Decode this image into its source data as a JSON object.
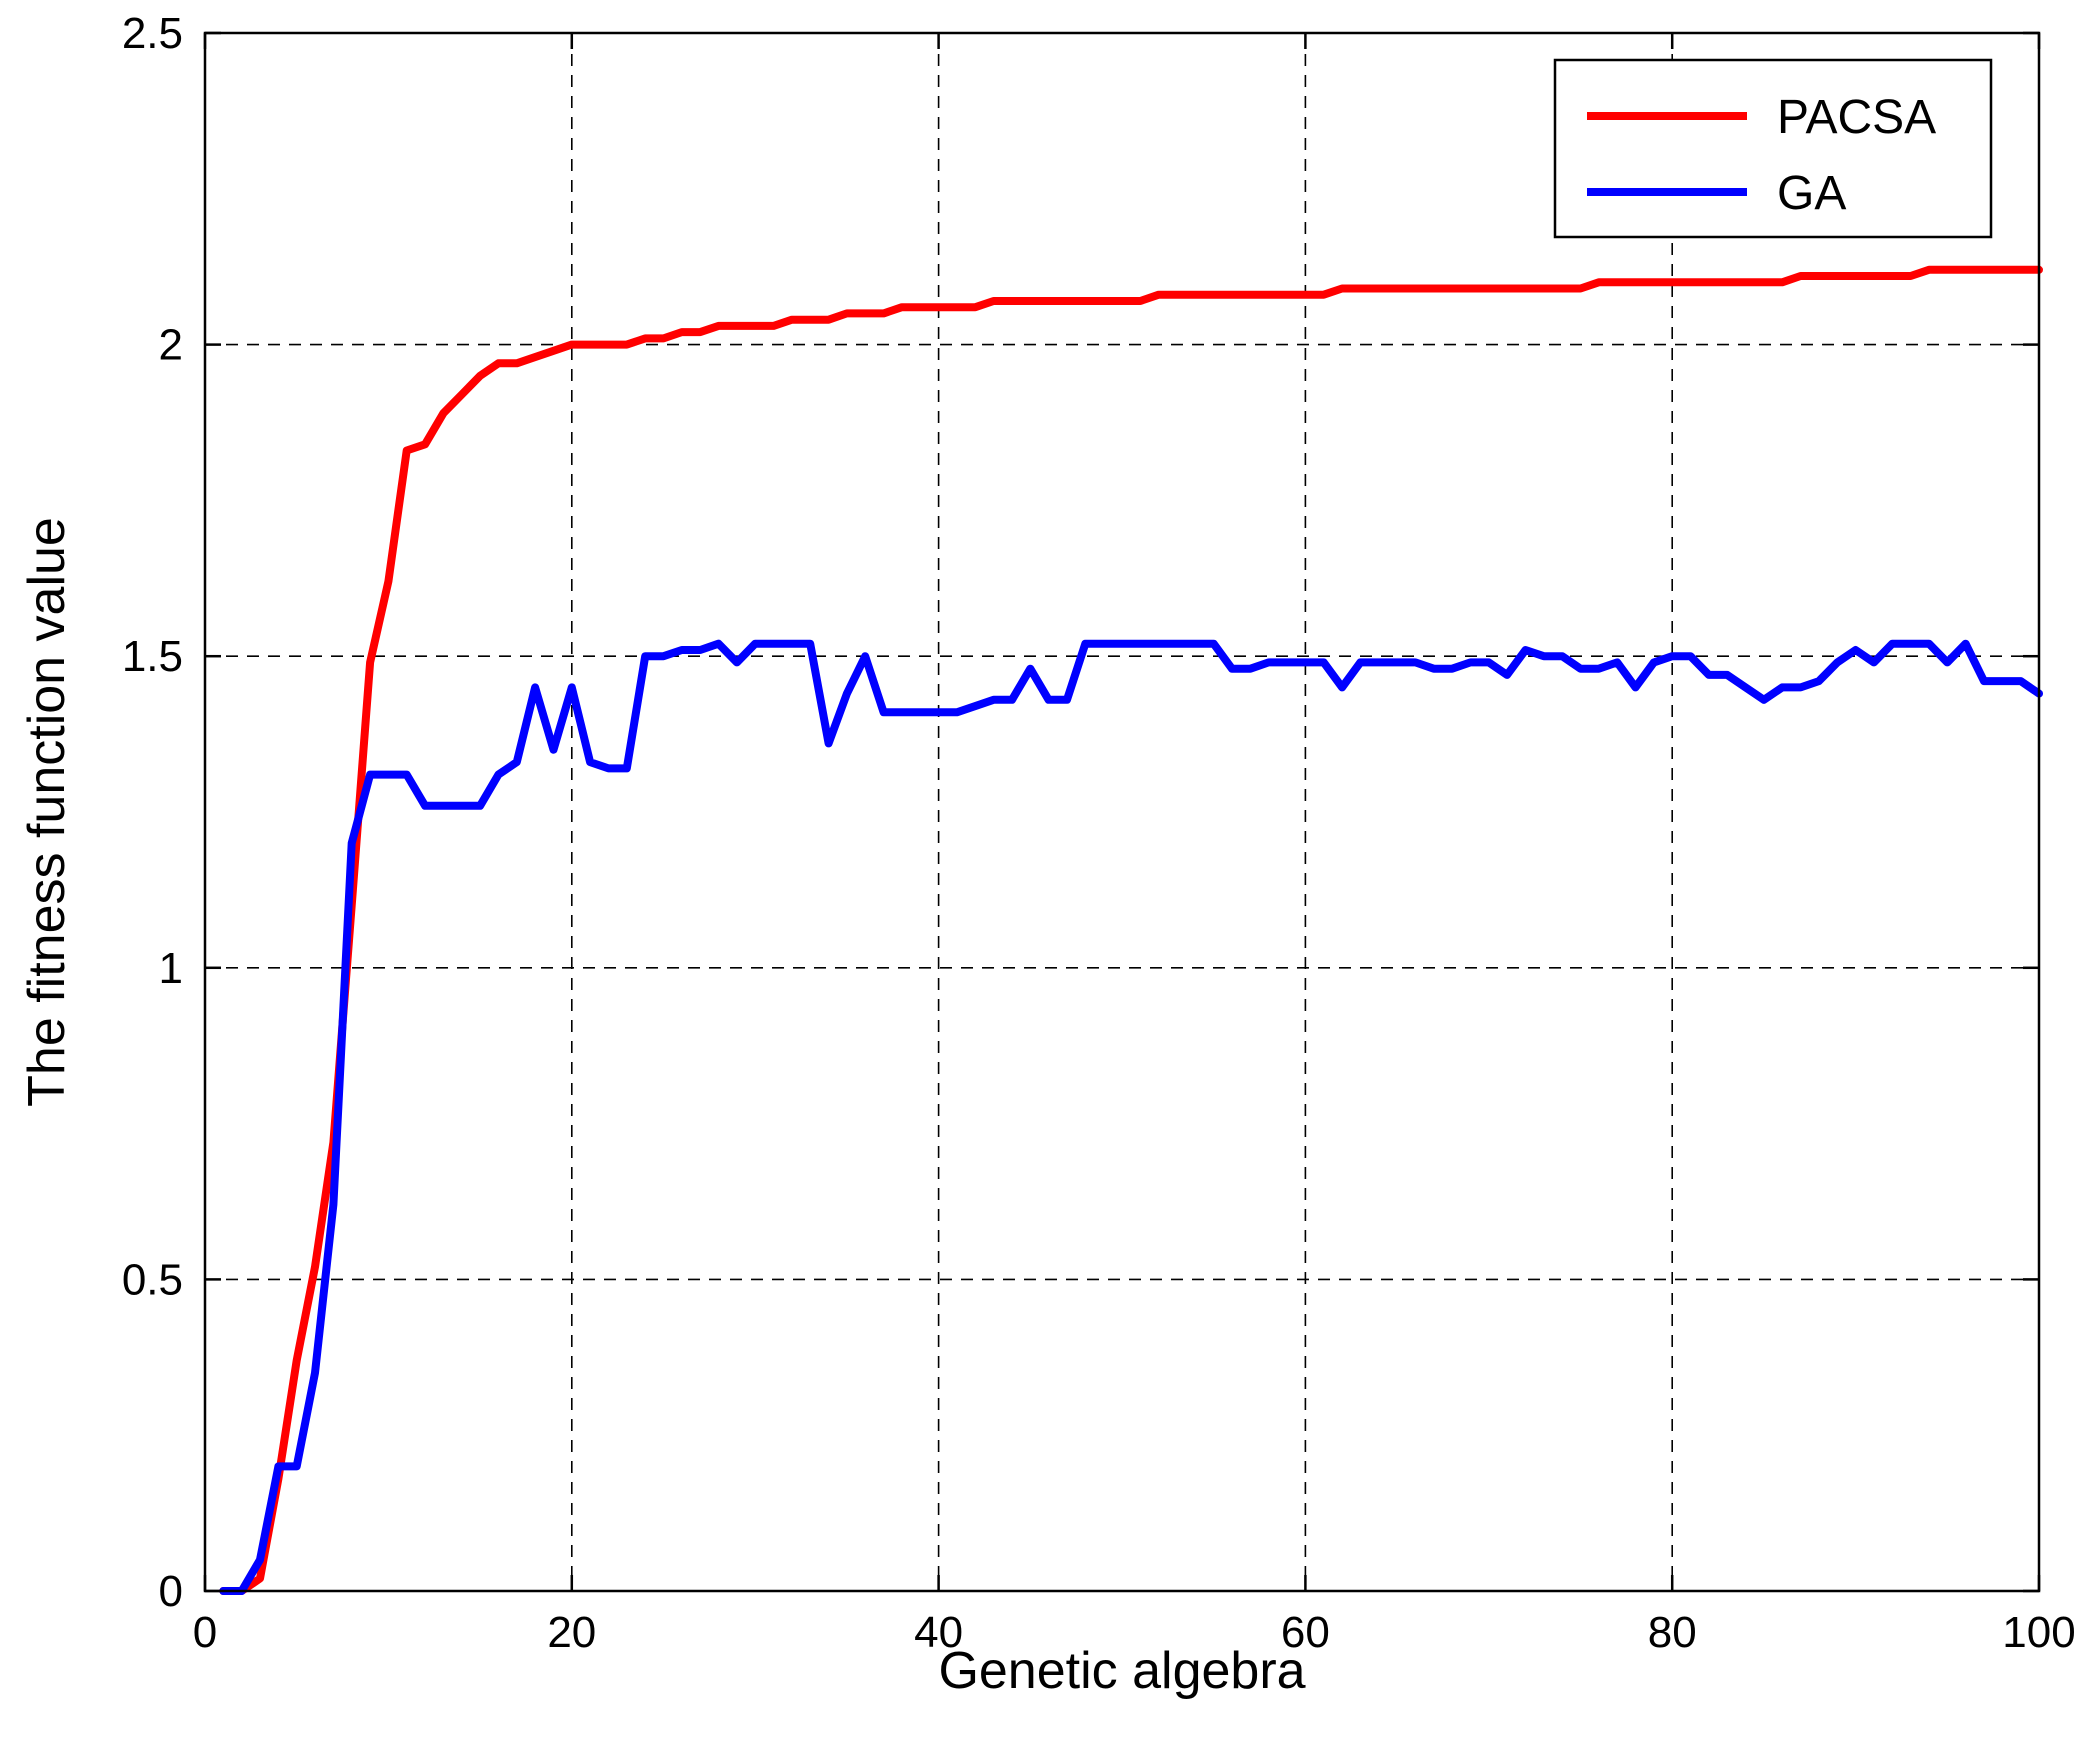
{
  "chart_data": {
    "type": "line",
    "xlabel": "Genetic algebra",
    "ylabel": "The fitness function value",
    "xlim": [
      0,
      100
    ],
    "ylim": [
      0,
      2.5
    ],
    "xticks": [
      0,
      20,
      40,
      60,
      80,
      100
    ],
    "yticks": [
      0,
      0.5,
      1,
      1.5,
      2,
      2.5
    ],
    "xtick_labels": [
      "0",
      "20",
      "40",
      "60",
      "80",
      "100"
    ],
    "ytick_labels": [
      "0",
      "0.5",
      "1",
      "1.5",
      "2",
      "2.5"
    ],
    "grid": true,
    "legend_position": "top-right",
    "series": [
      {
        "name": "PACSA",
        "color": "#ff0000",
        "x": [
          1,
          2,
          3,
          4,
          5,
          6,
          7,
          8,
          9,
          10,
          11,
          12,
          13,
          14,
          15,
          16,
          17,
          18,
          19,
          20,
          21,
          22,
          23,
          24,
          25,
          26,
          27,
          28,
          29,
          30,
          31,
          32,
          33,
          34,
          35,
          36,
          37,
          38,
          39,
          40,
          41,
          42,
          43,
          44,
          45,
          46,
          47,
          48,
          49,
          50,
          51,
          52,
          53,
          54,
          55,
          56,
          57,
          58,
          59,
          60,
          61,
          62,
          63,
          64,
          65,
          66,
          67,
          68,
          69,
          70,
          71,
          72,
          73,
          74,
          75,
          76,
          77,
          78,
          79,
          80,
          81,
          82,
          83,
          84,
          85,
          86,
          87,
          88,
          89,
          90,
          91,
          92,
          93,
          94,
          95,
          96,
          97,
          98,
          99,
          100
        ],
        "y": [
          0.0,
          0.0,
          0.02,
          0.18,
          0.37,
          0.52,
          0.72,
          1.1,
          1.49,
          1.62,
          1.83,
          1.84,
          1.89,
          1.92,
          1.95,
          1.97,
          1.97,
          1.98,
          1.99,
          2.0,
          2.0,
          2.0,
          2.0,
          2.01,
          2.01,
          2.02,
          2.02,
          2.03,
          2.03,
          2.03,
          2.03,
          2.04,
          2.04,
          2.04,
          2.05,
          2.05,
          2.05,
          2.06,
          2.06,
          2.06,
          2.06,
          2.06,
          2.07,
          2.07,
          2.07,
          2.07,
          2.07,
          2.07,
          2.07,
          2.07,
          2.07,
          2.08,
          2.08,
          2.08,
          2.08,
          2.08,
          2.08,
          2.08,
          2.08,
          2.08,
          2.08,
          2.09,
          2.09,
          2.09,
          2.09,
          2.09,
          2.09,
          2.09,
          2.09,
          2.09,
          2.09,
          2.09,
          2.09,
          2.09,
          2.09,
          2.1,
          2.1,
          2.1,
          2.1,
          2.1,
          2.1,
          2.1,
          2.1,
          2.1,
          2.1,
          2.1,
          2.11,
          2.11,
          2.11,
          2.11,
          2.11,
          2.11,
          2.11,
          2.12,
          2.12,
          2.12,
          2.12,
          2.12,
          2.12,
          2.12
        ]
      },
      {
        "name": "GA",
        "color": "#0000ff",
        "x": [
          1,
          2,
          3,
          4,
          5,
          6,
          7,
          8,
          9,
          10,
          11,
          12,
          13,
          14,
          15,
          16,
          17,
          18,
          19,
          20,
          21,
          22,
          23,
          24,
          25,
          26,
          27,
          28,
          29,
          30,
          31,
          32,
          33,
          34,
          35,
          36,
          37,
          38,
          39,
          40,
          41,
          42,
          43,
          44,
          45,
          46,
          47,
          48,
          49,
          50,
          51,
          52,
          53,
          54,
          55,
          56,
          57,
          58,
          59,
          60,
          61,
          62,
          63,
          64,
          65,
          66,
          67,
          68,
          69,
          70,
          71,
          72,
          73,
          74,
          75,
          76,
          77,
          78,
          79,
          80,
          81,
          82,
          83,
          84,
          85,
          86,
          87,
          88,
          89,
          90,
          91,
          92,
          93,
          94,
          95,
          96,
          97,
          98,
          99,
          100
        ],
        "y": [
          0.0,
          0.0,
          0.05,
          0.2,
          0.2,
          0.35,
          0.62,
          1.2,
          1.31,
          1.31,
          1.31,
          1.26,
          1.26,
          1.26,
          1.26,
          1.31,
          1.33,
          1.45,
          1.35,
          1.45,
          1.33,
          1.32,
          1.32,
          1.5,
          1.5,
          1.51,
          1.51,
          1.52,
          1.49,
          1.52,
          1.52,
          1.52,
          1.52,
          1.36,
          1.44,
          1.5,
          1.41,
          1.41,
          1.41,
          1.41,
          1.41,
          1.42,
          1.43,
          1.43,
          1.48,
          1.43,
          1.43,
          1.52,
          1.52,
          1.52,
          1.52,
          1.52,
          1.52,
          1.52,
          1.52,
          1.48,
          1.48,
          1.49,
          1.49,
          1.49,
          1.49,
          1.45,
          1.49,
          1.49,
          1.49,
          1.49,
          1.48,
          1.48,
          1.49,
          1.49,
          1.47,
          1.51,
          1.5,
          1.5,
          1.48,
          1.48,
          1.49,
          1.45,
          1.49,
          1.5,
          1.5,
          1.47,
          1.47,
          1.45,
          1.43,
          1.45,
          1.45,
          1.46,
          1.49,
          1.51,
          1.49,
          1.52,
          1.52,
          1.52,
          1.49,
          1.52,
          1.46,
          1.46,
          1.46,
          1.44
        ]
      }
    ]
  }
}
